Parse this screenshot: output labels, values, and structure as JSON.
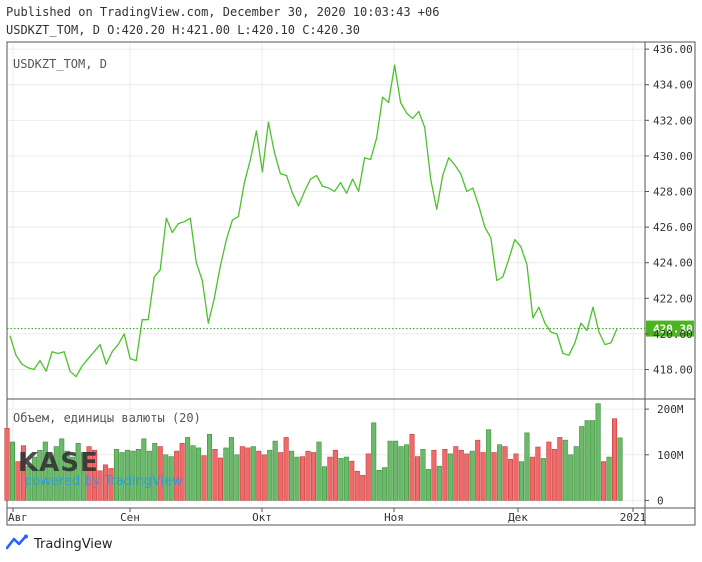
{
  "header": {
    "published": "Published on TradingView.com, December 30, 2020 10:03:43 +06",
    "ohlc": "USDKZT_TOM, D O:420.20 H:421.00 L:420.10 C:420.30"
  },
  "footer": {
    "brand": "TradingView"
  },
  "watermark": {
    "kase": "KASE",
    "powered": "powered by TradingView"
  },
  "colors": {
    "line": "#4bc22b",
    "up": "#6aba6a",
    "down": "#f06a6a",
    "last_price_bg": "#4bb520"
  },
  "chart_data": [
    {
      "type": "line",
      "title": "USDKZT_TOM, D",
      "last_price": 420.3,
      "last_price_label": "420.30",
      "ylim": [
        416.4,
        436.4
      ],
      "yticks": [
        418,
        420,
        422,
        424,
        426,
        428,
        430,
        432,
        434,
        436
      ],
      "ytick_labels": [
        "418.00",
        "420.00",
        "422.00",
        "424.00",
        "426.00",
        "428.00",
        "430.00",
        "432.00",
        "434.00",
        "436.00"
      ],
      "x_labels": [
        "Авг",
        "Сен",
        "Окт",
        "Ноя",
        "Дек",
        "2021"
      ],
      "values": [
        419.9,
        418.8,
        418.3,
        418.1,
        418.0,
        418.5,
        417.9,
        419.0,
        418.9,
        419.0,
        417.9,
        417.6,
        418.2,
        418.6,
        419.0,
        419.4,
        418.3,
        419.0,
        419.4,
        420.0,
        418.6,
        418.5,
        420.8,
        420.8,
        423.2,
        423.6,
        426.5,
        425.7,
        426.2,
        426.3,
        426.5,
        424.0,
        423.0,
        420.6,
        422.0,
        423.8,
        425.3,
        426.4,
        426.6,
        428.5,
        429.8,
        431.4,
        429.1,
        431.9,
        430.2,
        429.0,
        428.9,
        427.9,
        427.2,
        428.0,
        428.7,
        428.9,
        428.3,
        428.2,
        428.0,
        428.5,
        427.9,
        428.7,
        428.0,
        429.9,
        429.8,
        431.0,
        433.3,
        433.0,
        435.1,
        433.0,
        432.4,
        432.1,
        432.5,
        431.6,
        428.7,
        427.0,
        428.9,
        429.9,
        429.5,
        429.0,
        428.0,
        428.2,
        427.2,
        426.0,
        425.4,
        423.0,
        423.2,
        424.2,
        425.3,
        424.9,
        423.9,
        420.9,
        421.5,
        420.6,
        420.1,
        420.0,
        418.9,
        418.8,
        419.5,
        420.6,
        420.2,
        421.5,
        420.1,
        419.4,
        419.5,
        420.3
      ]
    },
    {
      "type": "bar",
      "title": "Объем, единицы валюты (20)",
      "ylim": [
        -10,
        220
      ],
      "yticks": [
        0,
        100,
        200
      ],
      "ytick_labels": [
        "0",
        "100M",
        "200M"
      ],
      "values": [
        158,
        128,
        85,
        120,
        75,
        95,
        110,
        128,
        95,
        118,
        135,
        108,
        95,
        125,
        105,
        118,
        110,
        65,
        78,
        70,
        112,
        105,
        110,
        108,
        112,
        135,
        108,
        125,
        118,
        100,
        96,
        108,
        125,
        138,
        120,
        115,
        98,
        145,
        112,
        93,
        115,
        138,
        100,
        118,
        115,
        118,
        108,
        100,
        110,
        130,
        105,
        138,
        108,
        95,
        96,
        108,
        105,
        128,
        74,
        95,
        110,
        92,
        95,
        86,
        64,
        55,
        102,
        170,
        66,
        72,
        130,
        130,
        118,
        122,
        145,
        96,
        112,
        68,
        110,
        75,
        112,
        102,
        118,
        110,
        102,
        108,
        132,
        105,
        155,
        105,
        122,
        118,
        90,
        102,
        85,
        148,
        95,
        117,
        92,
        128,
        112,
        138,
        132,
        100,
        118,
        162,
        175,
        175,
        212,
        85,
        95,
        179,
        137
      ],
      "colors": [
        1,
        0,
        1,
        1,
        0,
        0,
        0,
        0,
        0,
        0,
        0,
        0,
        0,
        0,
        0,
        1,
        1,
        1,
        1,
        1,
        0,
        0,
        0,
        0,
        0,
        0,
        0,
        0,
        1,
        0,
        0,
        1,
        1,
        0,
        0,
        0,
        1,
        0,
        1,
        1,
        0,
        0,
        0,
        1,
        1,
        0,
        1,
        1,
        0,
        0,
        1,
        1,
        0,
        0,
        1,
        1,
        1,
        0,
        0,
        1,
        1,
        0,
        0,
        1,
        1,
        1,
        1,
        0,
        0,
        0,
        0,
        0,
        0,
        0,
        1,
        1,
        0,
        0,
        1,
        0,
        1,
        0,
        1,
        1,
        1,
        0,
        1,
        1,
        0,
        1,
        0,
        1,
        1,
        1,
        0,
        0,
        1,
        1,
        0,
        1,
        1,
        1,
        0,
        0,
        0,
        0,
        0,
        0,
        0,
        1,
        0,
        1,
        0
      ]
    }
  ]
}
